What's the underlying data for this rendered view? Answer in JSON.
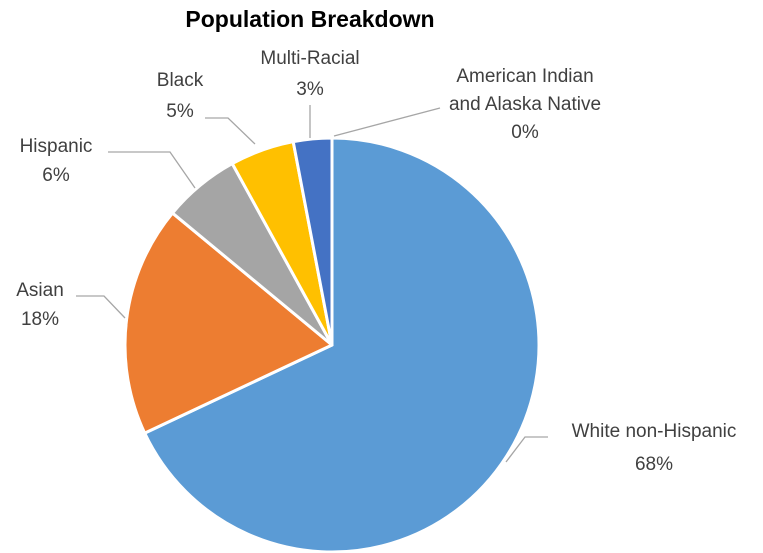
{
  "chart_data": {
    "type": "pie",
    "title": "Population Breakdown",
    "start_angle_deg": 0,
    "direction": "clockwise",
    "slice_border": "#ffffff",
    "slices": [
      {
        "name": "White non-Hispanic",
        "value": 68,
        "label": "68%",
        "color": "#5b9bd5"
      },
      {
        "name": "Asian",
        "value": 18,
        "label": "18%",
        "color": "#ed7d31"
      },
      {
        "name": "Hispanic",
        "value": 6,
        "label": "6%",
        "color": "#a5a5a5"
      },
      {
        "name": "Black",
        "value": 5,
        "label": "5%",
        "color": "#ffc000"
      },
      {
        "name": "Multi-Racial",
        "value": 3,
        "label": "3%",
        "color": "#4472c4"
      },
      {
        "name": "American Indian and Alaska Native",
        "value": 0,
        "label": "0%",
        "color": "#70ad47"
      }
    ],
    "legend": "none",
    "data_labels": "outside-with-leader-lines"
  }
}
